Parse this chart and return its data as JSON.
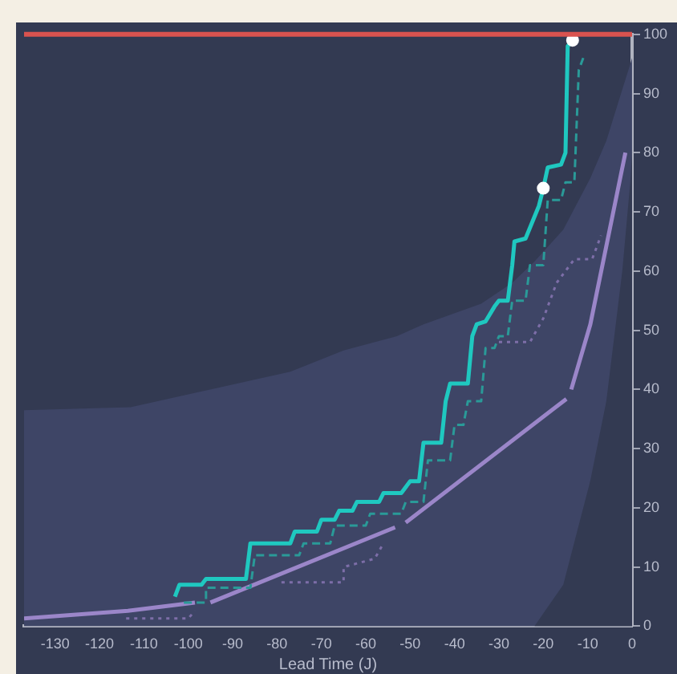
{
  "chart_data": {
    "type": "line",
    "xlabel": "Lead Time (J)",
    "xlim": [
      -137,
      0
    ],
    "xticks": [
      -130,
      -120,
      -110,
      -100,
      -90,
      -80,
      -70,
      -60,
      -50,
      -40,
      -30,
      -20,
      -10,
      0
    ],
    "ylim": [
      0,
      100
    ],
    "yticks": [
      0,
      10,
      20,
      30,
      40,
      50,
      60,
      70,
      80,
      90,
      100
    ],
    "grid": false,
    "legend": false,
    "marker": "none",
    "ref_lines": [
      {
        "axis": "y",
        "value": 100,
        "color": "#d9534f"
      }
    ],
    "series": [
      {
        "type": "area",
        "color": "#3e4566",
        "x": [
          -137,
          -113,
          -89,
          -77,
          -65,
          -53,
          -47,
          -34,
          -27,
          -22,
          -15.5,
          -9.4,
          -5.8,
          -2.2,
          -0.4,
          0
        ],
        "values": [
          36.5,
          37,
          41,
          43,
          46.6,
          49,
          51,
          54.5,
          58,
          61.6,
          67,
          75.7,
          82,
          90.7,
          95,
          96
        ]
      },
      {
        "type": "area",
        "color": "#333a52",
        "x": [
          -22,
          -15.5,
          -9.4,
          -5.8,
          -2.2,
          -0.4,
          0
        ],
        "values": [
          0,
          7,
          24.6,
          38,
          60,
          75,
          80
        ]
      },
      {
        "color": "#9b86c9",
        "x": [
          -137,
          -113.6,
          -98.5,
          -97,
          -95,
          -53.4,
          -52,
          -51,
          -14.8,
          -14.2,
          -13.7,
          -9.4,
          -1.5
        ],
        "values": [
          1.3,
          2.6,
          4,
          null,
          4,
          16.7,
          null,
          17.5,
          38.4,
          null,
          40,
          51,
          80
        ]
      },
      {
        "color": "#7d6ea8",
        "line_style": "dotted",
        "x": [
          -114,
          -100,
          -98.5,
          -80,
          -79,
          -65,
          -65,
          -58,
          -56,
          -40,
          -30,
          -23,
          -20,
          -17,
          -13,
          -9,
          -7
        ],
        "values": [
          1.3,
          1.3,
          2.6,
          null,
          7.4,
          7.4,
          10,
          11.4,
          14,
          null,
          48,
          48,
          52,
          58,
          62,
          62,
          66
        ]
      },
      {
        "color": "#2a9a98",
        "line_style": "dashed",
        "x": [
          -101,
          -96,
          -96,
          -86,
          -85,
          -75,
          -74,
          -68,
          -67,
          -60,
          -59,
          -52,
          -51,
          -47,
          -46,
          -41,
          -40,
          -38,
          -37,
          -34,
          -33,
          -31,
          -30,
          -28,
          -27,
          -24,
          -23,
          -20,
          -19,
          -16,
          -15,
          -13,
          -12,
          -11
        ],
        "values": [
          4,
          4,
          6.5,
          6.5,
          12,
          12,
          14,
          14,
          17,
          17,
          19,
          19,
          21,
          21,
          28,
          28,
          34,
          34,
          38,
          38,
          47,
          47,
          49,
          49,
          55,
          55,
          61,
          61,
          72,
          72,
          75,
          75,
          94,
          96
        ]
      },
      {
        "color": "#1fc8c0",
        "x": [
          -103,
          -102,
          -97,
          -96,
          -87,
          -86,
          -77,
          -76,
          -71,
          -70,
          -67,
          -66,
          -63,
          -62,
          -57,
          -56,
          -52,
          -50,
          -48,
          -47,
          -43,
          -42,
          -41,
          -37,
          -36,
          -35,
          -33,
          -31,
          -30,
          -28,
          -27,
          -26.5,
          -24,
          -21,
          -20,
          -19,
          -16,
          -15,
          -14.5,
          -13.4
        ],
        "values": [
          5,
          7,
          7,
          8,
          8,
          14,
          14,
          16,
          16,
          18,
          18,
          19.5,
          19.5,
          21,
          21,
          22.5,
          22.5,
          24.5,
          24.5,
          31,
          31,
          38,
          41,
          41,
          49,
          51,
          51.5,
          54,
          55,
          55,
          61,
          65,
          65.5,
          71,
          74,
          77.5,
          78,
          80,
          98,
          99
        ]
      },
      {
        "type": "scatter",
        "color": "#ffffff",
        "marker": "circle",
        "x": [
          -20,
          -13.4
        ],
        "values": [
          74,
          99
        ]
      }
    ]
  }
}
